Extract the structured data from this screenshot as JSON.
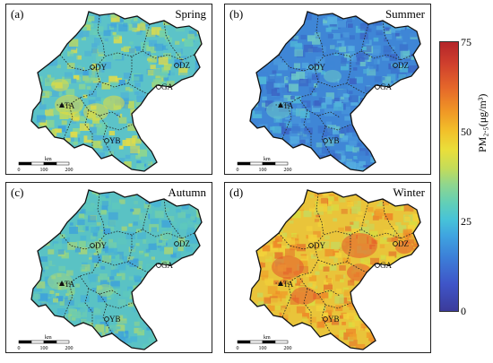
{
  "panels": [
    {
      "label": "(a)",
      "season": "Spring"
    },
    {
      "label": "(b)",
      "season": "Summer"
    },
    {
      "label": "(c)",
      "season": "Autumn"
    },
    {
      "label": "(d)",
      "season": "Winter"
    }
  ],
  "cities": [
    "DY",
    "DZ",
    "GA",
    "TA",
    "YB"
  ],
  "scalebar": {
    "unit": "km",
    "ticks": [
      "0",
      "100",
      "200"
    ]
  },
  "colorbar": {
    "title": "PM₂.₅(μg/m³)",
    "ticks": [
      "75",
      "50",
      "25",
      "0"
    ],
    "min": 0,
    "max": 75
  },
  "colors": {
    "spring_base": "#5fc4c8",
    "summer_base": "#3f86d6",
    "autumn_base": "#58c2c2",
    "winter_base": "#e6c23c"
  }
}
